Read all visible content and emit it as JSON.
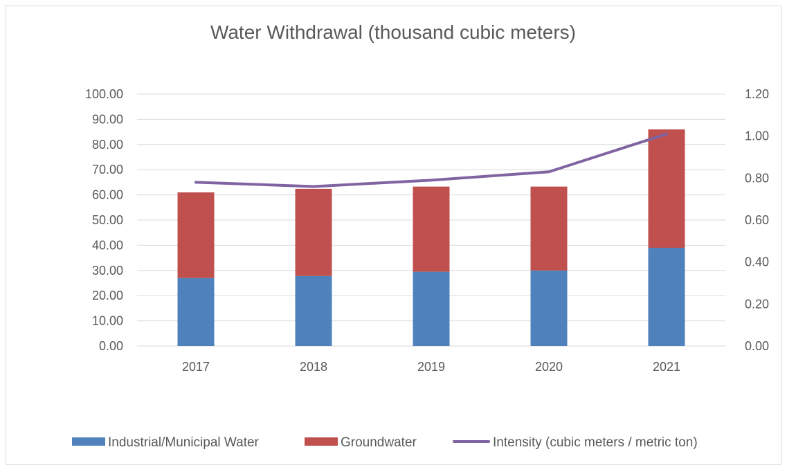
{
  "chart_data": {
    "type": "bar",
    "title": "Water Withdrawal (thousand cubic meters)",
    "categories": [
      "2017",
      "2018",
      "2019",
      "2020",
      "2021"
    ],
    "stacked": true,
    "series": [
      {
        "name": "Industrial/Municipal Water",
        "type": "bar",
        "axis": "left",
        "color": "#4f81bd",
        "values": [
          27.0,
          27.8,
          29.5,
          30.0,
          39.0
        ]
      },
      {
        "name": "Groundwater",
        "type": "bar",
        "axis": "left",
        "color": "#c0504d",
        "values": [
          34.0,
          34.6,
          33.8,
          33.3,
          47.0
        ]
      },
      {
        "name": "Intensity (cubic meters / metric ton)",
        "type": "line",
        "axis": "right",
        "color": "#8064a2",
        "values": [
          0.78,
          0.76,
          0.79,
          0.83,
          1.01
        ]
      }
    ],
    "y_left": {
      "ylim": [
        0,
        100
      ],
      "ticks": [
        "0.00",
        "10.00",
        "20.00",
        "30.00",
        "40.00",
        "50.00",
        "60.00",
        "70.00",
        "80.00",
        "90.00",
        "100.00"
      ]
    },
    "y_right": {
      "ylim": [
        0,
        1.2
      ],
      "ticks": [
        "0.00",
        "0.20",
        "0.40",
        "0.60",
        "0.80",
        "1.00",
        "1.20"
      ]
    },
    "grid": true,
    "legend_position": "bottom"
  }
}
